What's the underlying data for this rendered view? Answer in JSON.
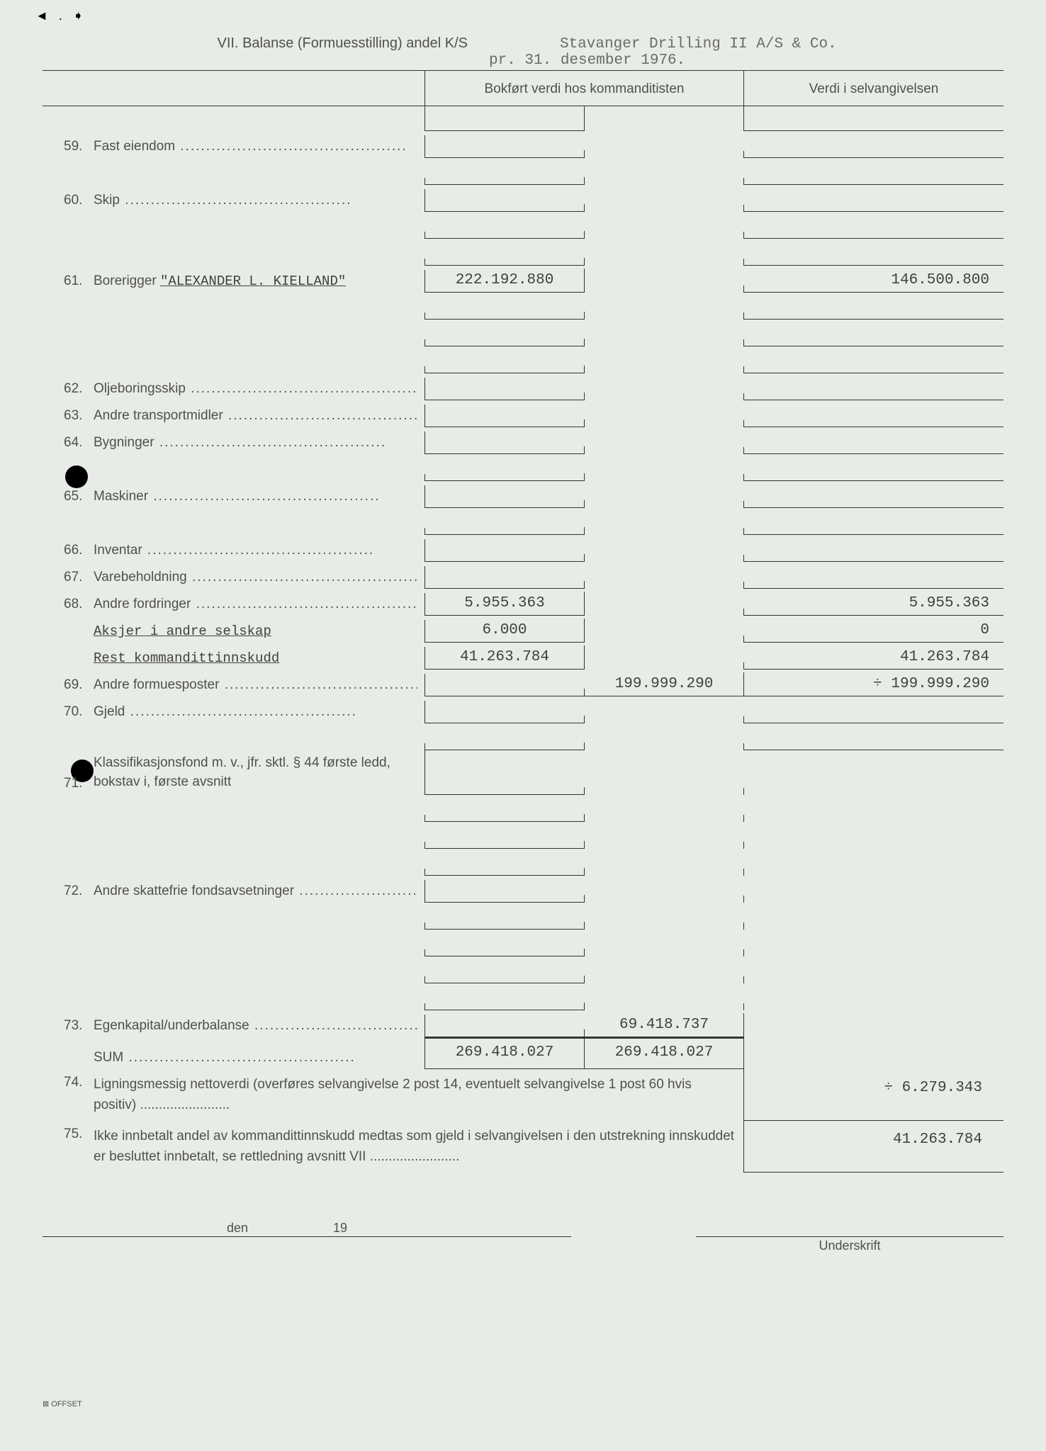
{
  "header": {
    "company": "Stavanger Drilling II A/S & Co.",
    "section_title": "VII.  Balanse (Formuesstilling) andel K/S",
    "date_text": "pr. 31. desember 1976."
  },
  "column_headers": {
    "bokfort": "Bokført verdi hos kommanditisten",
    "verdi": "Verdi i selvangivelsen"
  },
  "rows": [
    {
      "num": "59.",
      "label": "Fast eiendom",
      "dots": true,
      "c1": "",
      "c2": "",
      "v": ""
    },
    {
      "num": "",
      "label": "",
      "c1": "",
      "c2": "",
      "v": ""
    },
    {
      "num": "60.",
      "label": "Skip",
      "dots": true,
      "c1": "",
      "c2": "",
      "v": ""
    },
    {
      "num": "",
      "label": "",
      "c1": "",
      "c2": "",
      "v": ""
    },
    {
      "num": "",
      "label": "",
      "c1": "",
      "c2": "",
      "v": ""
    },
    {
      "num": "61.",
      "label": "Borerigger",
      "typed": "\"ALEXANDER L. KIELLAND\"",
      "c1": "222.192.880",
      "c2": "",
      "v": "146.500.800"
    },
    {
      "num": "",
      "label": "",
      "c1": "",
      "c2": "",
      "v": ""
    },
    {
      "num": "",
      "label": "",
      "c1": "",
      "c2": "",
      "v": ""
    },
    {
      "num": "",
      "label": "",
      "c1": "",
      "c2": "",
      "v": ""
    },
    {
      "num": "62.",
      "label": "Oljeboringsskip",
      "dots": true,
      "c1": "",
      "c2": "",
      "v": ""
    },
    {
      "num": "63.",
      "label": "Andre transportmidler",
      "dots": true,
      "c1": "",
      "c2": "",
      "v": ""
    },
    {
      "num": "64.",
      "label": "Bygninger",
      "dots": true,
      "c1": "",
      "c2": "",
      "v": ""
    },
    {
      "num": "",
      "label": "",
      "c1": "",
      "c2": "",
      "v": ""
    },
    {
      "num": "65.",
      "label": "Maskiner",
      "dots": true,
      "c1": "",
      "c2": "",
      "v": ""
    },
    {
      "num": "",
      "label": "",
      "c1": "",
      "c2": "",
      "v": ""
    },
    {
      "num": "66.",
      "label": "Inventar",
      "dots": true,
      "c1": "",
      "c2": "",
      "v": ""
    },
    {
      "num": "67.",
      "label": "Varebeholdning",
      "dots": true,
      "c1": "",
      "c2": "",
      "v": ""
    },
    {
      "num": "68.",
      "label": "Andre fordringer",
      "dots": true,
      "c1": "5.955.363",
      "c2": "",
      "v": "5.955.363"
    },
    {
      "num": "",
      "typed_only": "Aksjer i andre selskap",
      "c1": "6.000",
      "c2": "",
      "v": "0"
    },
    {
      "num": "",
      "typed_only": "Rest kommandittinnskudd",
      "c1": "41.263.784",
      "c2": "",
      "v": "41.263.784"
    },
    {
      "num": "69.",
      "label": "Andre formuesposter",
      "dots": true,
      "c1": "",
      "c2": "199.999.290",
      "c2_border": true,
      "v": "÷ 199.999.290"
    },
    {
      "num": "70.",
      "label": "Gjeld",
      "dots": true,
      "c1": "",
      "c2": "",
      "v": ""
    },
    {
      "num": "",
      "label": "",
      "c1": "",
      "c2": "",
      "v": ""
    },
    {
      "num": "71.",
      "label": "Klassifikasjonsfond m. v., jfr. sktl. § 44 første ledd, bokstav i, første avsnitt",
      "multiline": true,
      "c1": "",
      "c2": "",
      "v": "",
      "v_no_border": true
    },
    {
      "num": "",
      "label": "",
      "c1": "",
      "c2": "",
      "v": "",
      "v_no_border": true
    },
    {
      "num": "",
      "label": "",
      "c1": "",
      "c2": "",
      "v": "",
      "v_no_border": true
    },
    {
      "num": "",
      "label": "",
      "c1": "",
      "c2": "",
      "v": "",
      "v_no_border": true
    },
    {
      "num": "72.",
      "label": "Andre skattefrie fondsavsetninger",
      "dots": true,
      "c1": "",
      "c2": "",
      "v": "",
      "v_no_border": true
    },
    {
      "num": "",
      "label": "",
      "c1": "",
      "c2": "",
      "v": "",
      "v_no_border": true
    },
    {
      "num": "",
      "label": "",
      "c1": "",
      "c2": "",
      "v": "",
      "v_no_border": true
    },
    {
      "num": "",
      "label": "",
      "c1": "",
      "c2": "",
      "v": "",
      "v_no_border": true
    },
    {
      "num": "",
      "label": "",
      "c1": "",
      "c2": "",
      "v": "",
      "v_no_border": true
    },
    {
      "num": "73.",
      "label": "Egenkapital/underbalanse",
      "dots": true,
      "c1": "",
      "c2": "69.418.737",
      "c2_border": true,
      "v": "",
      "v_no_border": true
    }
  ],
  "sum": {
    "label": "SUM",
    "c1": "269.418.027",
    "c2": "269.418.027"
  },
  "bottom_rows": [
    {
      "num": "74.",
      "text": "Ligningsmessig nettoverdi (overføres selvangivelse 2 post 14, eventuelt selvangivelse 1 post 60 hvis positiv)",
      "v": "÷   6.279.343"
    },
    {
      "num": "75.",
      "text": "Ikke innbetalt andel av kommandittinnskudd medtas som gjeld i selvangivelsen i den utstrekning innskuddet er besluttet innbetalt, se rettledning avsnitt VII",
      "v": "41.263.784"
    }
  ],
  "footer": {
    "den": "den",
    "year_prefix": "19",
    "underskrift": "Underskrift",
    "offset": "⊠ OFFSET"
  }
}
